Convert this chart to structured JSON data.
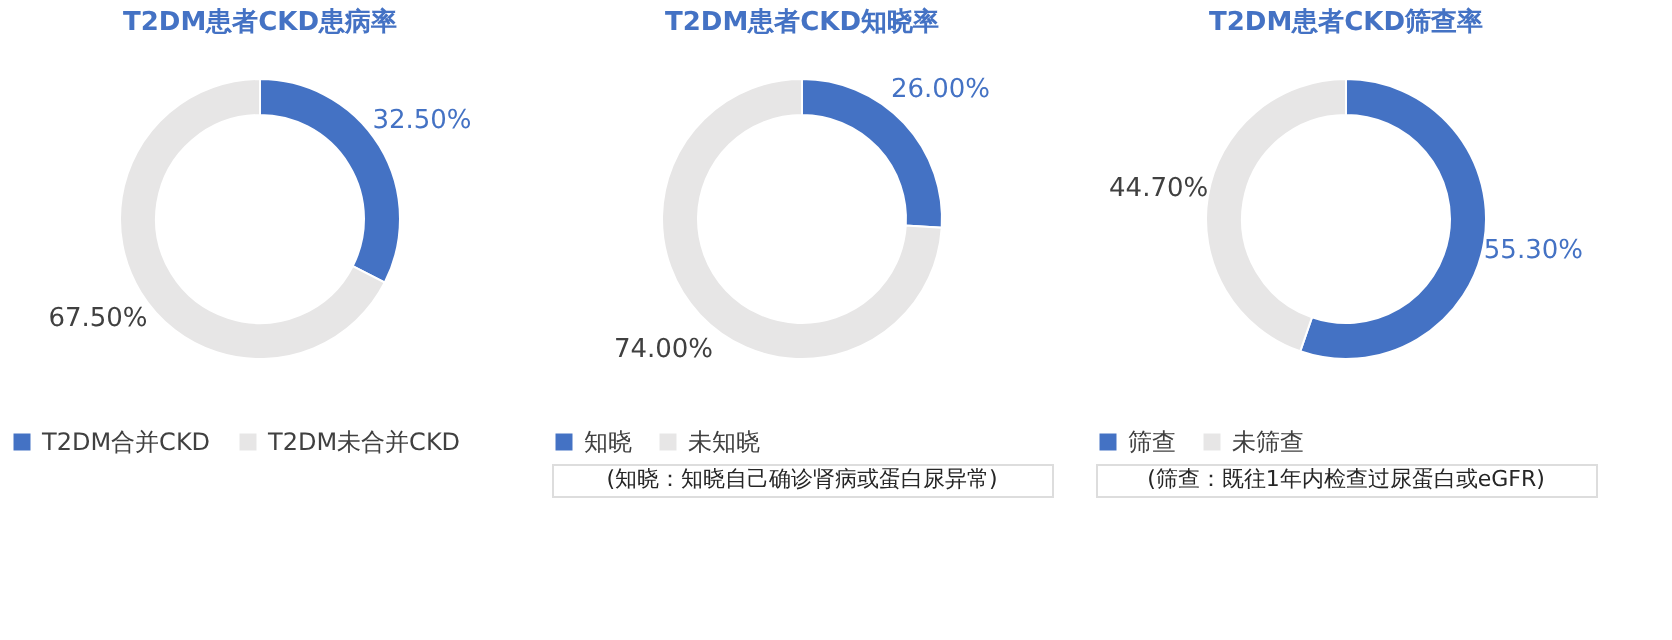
{
  "chart_data": [
    {
      "type": "donut",
      "title": "T2DM患者CKD患病率",
      "categories": [
        "T2DM合并CKD",
        "T2DM未合并CKD"
      ],
      "values": [
        32.5,
        67.5
      ],
      "colors": [
        "#4472c4",
        "#e7e6e6"
      ],
      "value_labels": [
        "32.50%",
        "67.50%"
      ],
      "legend": "bottom"
    },
    {
      "type": "donut",
      "title": "T2DM患者CKD知晓率",
      "categories": [
        "知晓",
        "未知晓"
      ],
      "values": [
        26.0,
        74.0
      ],
      "colors": [
        "#4472c4",
        "#e7e6e6"
      ],
      "value_labels": [
        "26.00%",
        "74.00%"
      ],
      "legend": "bottom",
      "annotations": [
        "(知晓：知晓自己确诊肾病或蛋白尿异常)"
      ]
    },
    {
      "type": "donut",
      "title": "T2DM患者CKD筛查率",
      "categories": [
        "筛查",
        "未筛查"
      ],
      "values": [
        55.3,
        44.7
      ],
      "colors": [
        "#4472c4",
        "#e7e6e6"
      ],
      "value_labels": [
        "55.30%",
        "44.70%"
      ],
      "legend": "bottom",
      "annotations": [
        "(筛查：既往1年内检查过尿蛋白或eGFR)"
      ]
    }
  ]
}
